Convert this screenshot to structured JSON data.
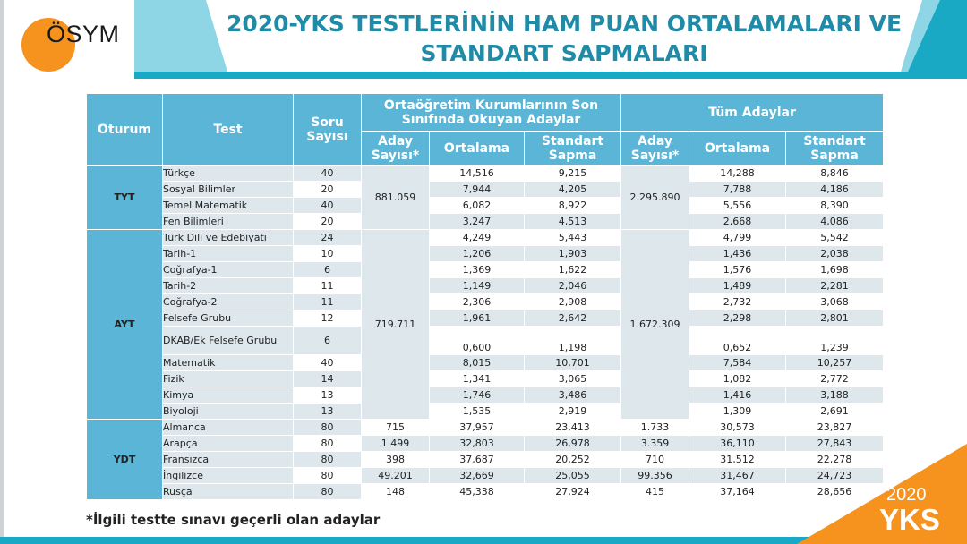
{
  "brand": {
    "name": "ÖSYM"
  },
  "title": {
    "line1": "2020-YKS TESTLERİNİN HAM PUAN ORTALAMALARI VE",
    "line2": "STANDART SAPMALARI"
  },
  "badge": {
    "year": "2020",
    "name": "YKS"
  },
  "colors": {
    "teal": "#1aa9c5",
    "header": "#5ab5d6",
    "orange": "#f5931e",
    "row": "#dde7ec"
  },
  "headers": {
    "oturum": "Oturum",
    "test": "Test",
    "soru": "Soru Sayısı",
    "group_last": "Ortaöğretim Kurumlarının Son Sınıfında Okuyan Adaylar",
    "group_all": "Tüm Adaylar",
    "aday": "Aday Sayısı*",
    "ortalama": "Ortalama",
    "sapma": "Standart Sapma"
  },
  "sessions": {
    "tyt": {
      "name": "TYT",
      "last_count": "881.059",
      "all_count": "2.295.890"
    },
    "ayt": {
      "name": "AYT",
      "last_count": "719.711",
      "all_count": "1.672.309"
    },
    "ydt": {
      "name": "YDT"
    }
  },
  "rows": [
    {
      "test": "Türkçe",
      "soru": "40",
      "ort1": "14,516",
      "sd1": "9,215",
      "ort2": "14,288",
      "sd2": "8,846"
    },
    {
      "test": "Sosyal Bilimler",
      "soru": "20",
      "ort1": "7,944",
      "sd1": "4,205",
      "ort2": "7,788",
      "sd2": "4,186"
    },
    {
      "test": "Temel Matematik",
      "soru": "40",
      "ort1": "6,082",
      "sd1": "8,922",
      "ort2": "5,556",
      "sd2": "8,390"
    },
    {
      "test": "Fen Bilimleri",
      "soru": "20",
      "ort1": "3,247",
      "sd1": "4,513",
      "ort2": "2,668",
      "sd2": "4,086"
    },
    {
      "test": "Türk Dili ve Edebiyatı",
      "soru": "24",
      "ort1": "4,249",
      "sd1": "5,443",
      "ort2": "4,799",
      "sd2": "5,542"
    },
    {
      "test": "Tarih-1",
      "soru": "10",
      "ort1": "1,206",
      "sd1": "1,903",
      "ort2": "1,436",
      "sd2": "2,038"
    },
    {
      "test": "Coğrafya-1",
      "soru": "6",
      "ort1": "1,369",
      "sd1": "1,622",
      "ort2": "1,576",
      "sd2": "1,698"
    },
    {
      "test": "Tarih-2",
      "soru": "11",
      "ort1": "1,149",
      "sd1": "2,046",
      "ort2": "1,489",
      "sd2": "2,281"
    },
    {
      "test": "Coğrafya-2",
      "soru": "11",
      "ort1": "2,306",
      "sd1": "2,908",
      "ort2": "2,732",
      "sd2": "3,068"
    },
    {
      "test": "Felsefe Grubu",
      "soru": "12",
      "ort1": "1,961",
      "sd1": "2,642",
      "ort2": "2,298",
      "sd2": "2,801"
    },
    {
      "test": "DKAB/Ek Felsefe Grubu",
      "soru": "6",
      "ort1": "0,600",
      "sd1": "1,198",
      "ort2": "0,652",
      "sd2": "1,239"
    },
    {
      "test": "Matematik",
      "soru": "40",
      "ort1": "8,015",
      "sd1": "10,701",
      "ort2": "7,584",
      "sd2": "10,257"
    },
    {
      "test": "Fizik",
      "soru": "14",
      "ort1": "1,341",
      "sd1": "3,065",
      "ort2": "1,082",
      "sd2": "2,772"
    },
    {
      "test": "Kimya",
      "soru": "13",
      "ort1": "1,746",
      "sd1": "3,486",
      "ort2": "1,416",
      "sd2": "3,188"
    },
    {
      "test": "Biyoloji",
      "soru": "13",
      "ort1": "1,535",
      "sd1": "2,919",
      "ort2": "1,309",
      "sd2": "2,691"
    },
    {
      "test": "Almanca",
      "soru": "80",
      "aday1": "715",
      "ort1": "37,957",
      "sd1": "23,413",
      "aday2": "1.733",
      "ort2": "30,573",
      "sd2": "23,827"
    },
    {
      "test": "Arapça",
      "soru": "80",
      "aday1": "1.499",
      "ort1": "32,803",
      "sd1": "26,978",
      "aday2": "3.359",
      "ort2": "36,110",
      "sd2": "27,843"
    },
    {
      "test": "Fransızca",
      "soru": "80",
      "aday1": "398",
      "ort1": "37,687",
      "sd1": "20,252",
      "aday2": "710",
      "ort2": "31,512",
      "sd2": "22,278"
    },
    {
      "test": "İngilizce",
      "soru": "80",
      "aday1": "49.201",
      "ort1": "32,669",
      "sd1": "25,055",
      "aday2": "99.356",
      "ort2": "31,467",
      "sd2": "24,723"
    },
    {
      "test": "Rusça",
      "soru": "80",
      "aday1": "148",
      "ort1": "45,338",
      "sd1": "27,924",
      "aday2": "415",
      "ort2": "37,164",
      "sd2": "28,656"
    }
  ],
  "footnote": "*İlgili testte sınavı geçerli olan adaylar"
}
